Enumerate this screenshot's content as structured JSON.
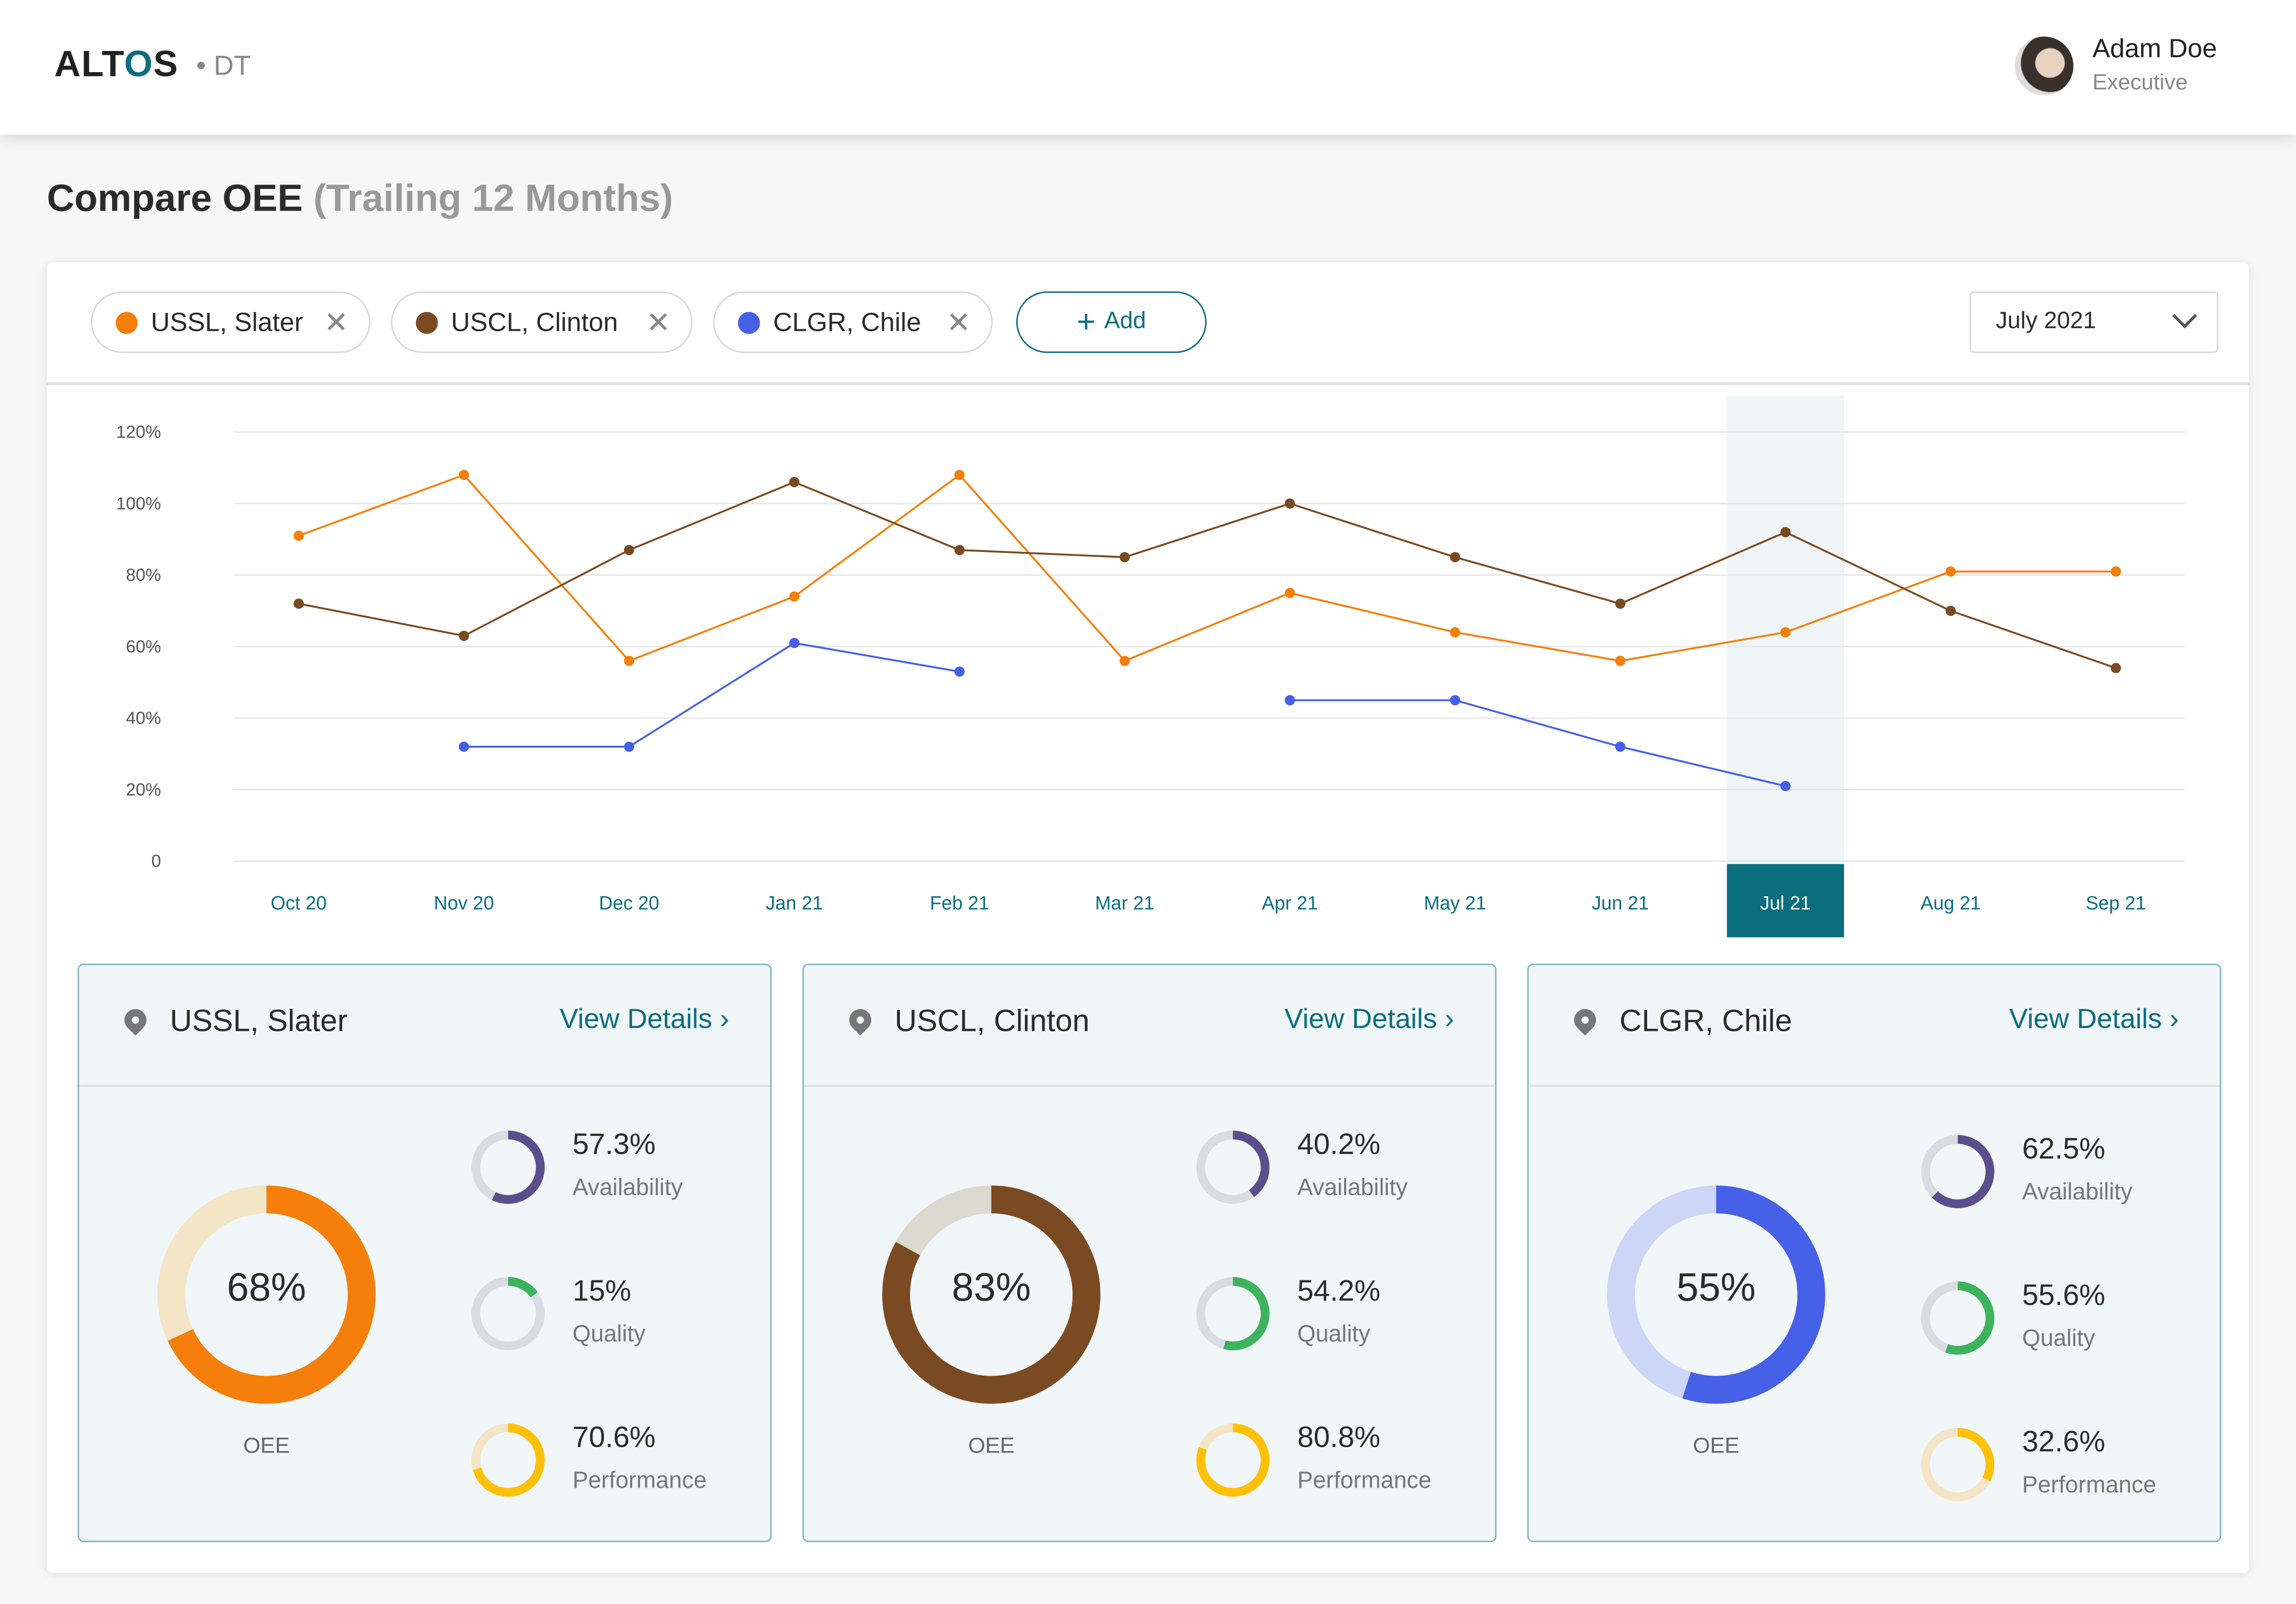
{
  "header": {
    "logo": "ALTOS",
    "logo_sub": "DT",
    "user_name": "Adam Doe",
    "user_role": "Executive"
  },
  "page": {
    "title": "Compare OEE",
    "title_sub": "(Trailing 12 Months)"
  },
  "filters": {
    "chips": [
      {
        "label": "USSL, Slater",
        "color": "#F57F0A"
      },
      {
        "label": "USCL, Clinton",
        "color": "#7A4B22"
      },
      {
        "label": "CLGR, Chile",
        "color": "#4760E8"
      }
    ],
    "add_label": "Add",
    "month": "July 2021",
    "close_glyph": "✕"
  },
  "chart_data": {
    "type": "line",
    "categories": [
      "Oct 20",
      "Nov 20",
      "Dec 20",
      "Jan 21",
      "Feb 21",
      "Mar 21",
      "Apr 21",
      "May 21",
      "Jun 21",
      "Jul 21",
      "Aug 21",
      "Sep 21"
    ],
    "y_ticks": [
      "0",
      "20%",
      "40%",
      "60%",
      "80%",
      "100%",
      "120%"
    ],
    "ylim": [
      0,
      120
    ],
    "highlight": "Jul 21",
    "series": [
      {
        "name": "USSL, Slater",
        "color": "#F57F0A",
        "values": [
          91,
          108,
          56,
          74,
          108,
          56,
          75,
          64,
          56,
          64,
          81,
          81
        ]
      },
      {
        "name": "USCL, Clinton",
        "color": "#7A4B22",
        "values": [
          72,
          63,
          87,
          106,
          87,
          85,
          100,
          85,
          72,
          92,
          70,
          54
        ]
      },
      {
        "name": "CLGR, Chile",
        "color": "#4760E8",
        "values": [
          null,
          32,
          32,
          61,
          53,
          null,
          45,
          45,
          32,
          21,
          null,
          null
        ]
      }
    ]
  },
  "cards": [
    {
      "name": "USSL, Slater",
      "view": "View Details",
      "oee": "68%",
      "oee_value": 68,
      "oee_label": "OEE",
      "color": "#F57F0A",
      "track": "#F3E5C6",
      "metrics": [
        {
          "value": "57.3%",
          "label": "Availability",
          "pct": 57.3
        },
        {
          "value": "15%",
          "label": "Quality",
          "pct": 15
        },
        {
          "value": "70.6%",
          "label": "Performance",
          "pct": 70.6
        }
      ]
    },
    {
      "name": "USCL, Clinton",
      "view": "View Details",
      "oee": "83%",
      "oee_value": 83,
      "oee_label": "OEE",
      "color": "#7A4B22",
      "track": "#DCD9D0",
      "metrics": [
        {
          "value": "40.2%",
          "label": "Availability",
          "pct": 40.2
        },
        {
          "value": "54.2%",
          "label": "Quality",
          "pct": 54.2
        },
        {
          "value": "80.8%",
          "label": "Performance",
          "pct": 80.8
        }
      ]
    },
    {
      "name": "CLGR, Chile",
      "view": "View Details",
      "oee": "55%",
      "oee_value": 55,
      "oee_label": "OEE",
      "color": "#4760E8",
      "track": "#CCD6F6",
      "metrics": [
        {
          "value": "62.5%",
          "label": "Availability",
          "pct": 62.5
        },
        {
          "value": "55.6%",
          "label": "Quality",
          "pct": 55.6
        },
        {
          "value": "32.6%",
          "label": "Performance",
          "pct": 32.6
        }
      ]
    }
  ],
  "metric_colors": {
    "Availability": [
      "#5B4E8C",
      "#D9DDE3"
    ],
    "Quality": [
      "#3DB35E",
      "#D9DDE3"
    ],
    "Performance": [
      "#FFC107",
      "#F3E5C6"
    ]
  }
}
